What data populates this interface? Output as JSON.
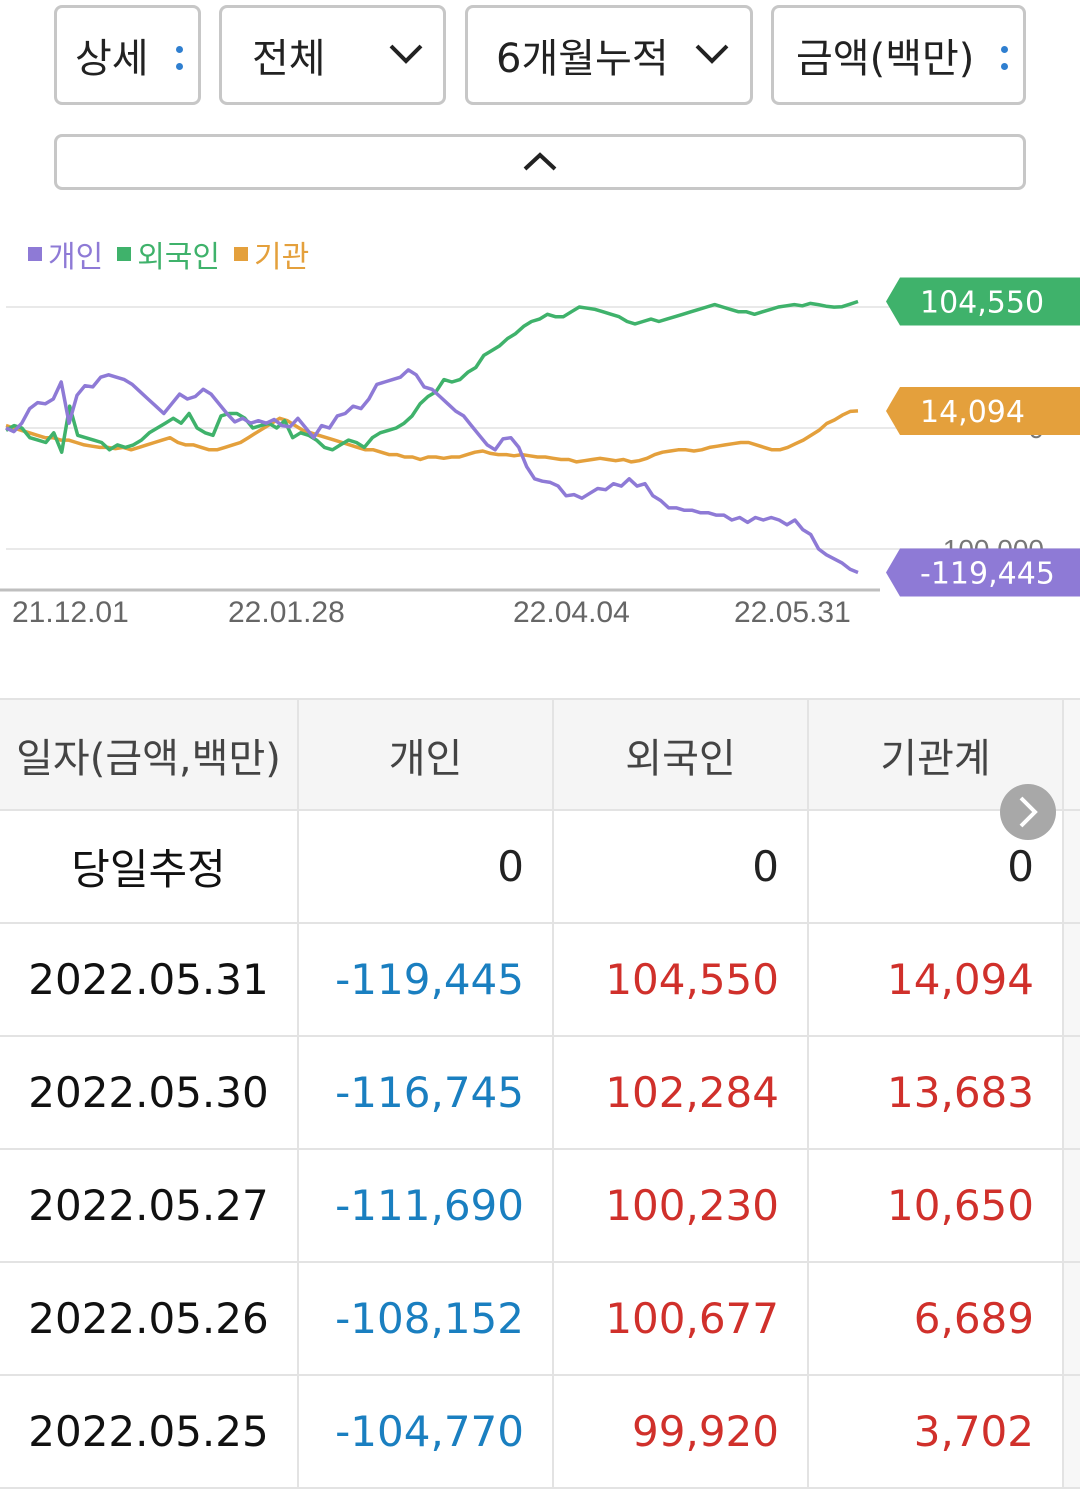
{
  "toolbar": {
    "view_select": "상세",
    "scope_select": "전체",
    "period_select": "6개월누적",
    "unit_select": "금액(백만)"
  },
  "colors": {
    "individual": "#8e7ad6",
    "foreign": "#3fb26b",
    "institution": "#e4a03c",
    "negative": "#1a7fc0",
    "positive": "#d0302b"
  },
  "chart_data": {
    "type": "line",
    "x_ticks": [
      "21.12.01",
      "22.01.28",
      "22.04.04",
      "22.05.31"
    ],
    "gridline_labels": [
      "100,000",
      "0",
      "-100,000"
    ],
    "ylim": [
      -120000,
      110000
    ],
    "series": [
      {
        "name": "개인",
        "last_label": "-119,445",
        "values": [
          0,
          -3000,
          4000,
          16000,
          21000,
          20000,
          24000,
          38000,
          4000,
          27000,
          35000,
          34000,
          42000,
          44000,
          42000,
          40000,
          36000,
          30000,
          24000,
          18000,
          12000,
          20000,
          28000,
          24000,
          26000,
          32000,
          28000,
          20000,
          12000,
          5000,
          8000,
          4000,
          6000,
          4000,
          7000,
          2000,
          1000,
          8000,
          0,
          -8000,
          2000,
          0,
          10000,
          12000,
          18000,
          16000,
          24000,
          36000,
          38000,
          40000,
          42000,
          48000,
          44000,
          34000,
          32000,
          26000,
          20000,
          14000,
          10000,
          2000,
          -6000,
          -14000,
          -18000,
          -9000,
          -8000,
          -16000,
          -32000,
          -42000,
          -44000,
          -45000,
          -48000,
          -56000,
          -55000,
          -58000,
          -54000,
          -50000,
          -51000,
          -46000,
          -48000,
          -42000,
          -48000,
          -46000,
          -56000,
          -60000,
          -66000,
          -66000,
          -68000,
          -68000,
          -70000,
          -70000,
          -72000,
          -72000,
          -76000,
          -74000,
          -78000,
          -74000,
          -76000,
          -74000,
          -76000,
          -80000,
          -76000,
          -84000,
          -88000,
          -100000,
          -104770,
          -108152,
          -111690,
          -116745,
          -119445
        ]
      },
      {
        "name": "외국인",
        "last_label": "104,550",
        "values": [
          -2000,
          2000,
          0,
          -8000,
          -10000,
          -12000,
          -4000,
          -20000,
          18000,
          -6000,
          -8000,
          -10000,
          -12000,
          -18000,
          -14000,
          -16000,
          -14000,
          -10000,
          -4000,
          0,
          4000,
          8000,
          4000,
          12000,
          0,
          -4000,
          -6000,
          10000,
          12000,
          12000,
          8000,
          0,
          2000,
          4000,
          0,
          6000,
          -8000,
          -4000,
          -6000,
          -10000,
          -16000,
          -18000,
          -14000,
          -10000,
          -12000,
          -16000,
          -8000,
          -4000,
          -2000,
          0,
          4000,
          10000,
          20000,
          26000,
          30000,
          40000,
          38000,
          40000,
          46000,
          50000,
          60000,
          64000,
          68000,
          74000,
          78000,
          84000,
          88000,
          90000,
          94000,
          92000,
          92000,
          96000,
          100000,
          99000,
          98000,
          96000,
          94000,
          92000,
          88000,
          86000,
          88000,
          90000,
          88000,
          90000,
          92000,
          94000,
          96000,
          98000,
          100000,
          102000,
          100000,
          98000,
          96000,
          96000,
          94000,
          96000,
          98000,
          100000,
          101000,
          102000,
          101000,
          103000,
          102000,
          100677,
          99920,
          100230,
          102284,
          104550
        ]
      },
      {
        "name": "기관",
        "last_label": "14,094",
        "values": [
          2000,
          0,
          -2000,
          -4000,
          -6000,
          -8000,
          -8000,
          -10000,
          -10000,
          -12000,
          -14000,
          -15000,
          -16000,
          -16000,
          -17000,
          -16000,
          -18000,
          -16000,
          -14000,
          -12000,
          -10000,
          -8000,
          -12000,
          -14000,
          -14000,
          -16000,
          -18000,
          -18000,
          -16000,
          -14000,
          -12000,
          -8000,
          -4000,
          0,
          4000,
          8000,
          6000,
          2000,
          -2000,
          -4000,
          -6000,
          -8000,
          -10000,
          -12000,
          -14000,
          -16000,
          -18000,
          -18000,
          -20000,
          -22000,
          -22000,
          -24000,
          -24000,
          -26000,
          -24000,
          -24000,
          -25000,
          -24000,
          -24000,
          -22000,
          -20000,
          -19000,
          -21000,
          -22000,
          -22000,
          -23000,
          -22000,
          -23000,
          -24000,
          -24000,
          -25000,
          -26000,
          -26000,
          -28000,
          -27000,
          -26000,
          -25000,
          -26000,
          -27000,
          -26000,
          -28000,
          -27000,
          -25000,
          -22000,
          -20000,
          -19000,
          -18000,
          -18000,
          -19000,
          -18000,
          -16000,
          -15000,
          -14000,
          -13000,
          -12000,
          -12000,
          -14000,
          -16000,
          -18000,
          -18000,
          -16000,
          -13000,
          -10000,
          -6000,
          -2000,
          3702,
          6689,
          10650,
          13683,
          14094
        ]
      }
    ]
  },
  "table": {
    "headers": [
      "일자(금액,백만)",
      "개인",
      "외국인",
      "기관계"
    ],
    "rows": [
      {
        "date": "당일추정",
        "individual": "0",
        "foreign": "0",
        "institution": "0"
      },
      {
        "date": "2022.05.31",
        "individual": "-119,445",
        "foreign": "104,550",
        "institution": "14,094"
      },
      {
        "date": "2022.05.30",
        "individual": "-116,745",
        "foreign": "102,284",
        "institution": "13,683"
      },
      {
        "date": "2022.05.27",
        "individual": "-111,690",
        "foreign": "100,230",
        "institution": "10,650"
      },
      {
        "date": "2022.05.26",
        "individual": "-108,152",
        "foreign": "100,677",
        "institution": "6,689"
      },
      {
        "date": "2022.05.25",
        "individual": "-104,770",
        "foreign": "99,920",
        "institution": "3,702"
      }
    ]
  }
}
